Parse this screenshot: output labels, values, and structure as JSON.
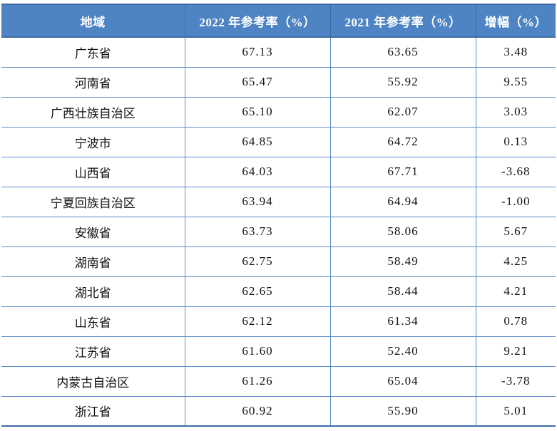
{
  "table": {
    "columns": [
      "地域",
      "2022 年参考率（%）",
      "2021 年参考率（%）",
      "增幅（%）"
    ],
    "rows": [
      {
        "region": "广东省",
        "rate_2022": "67.13",
        "rate_2021": "63.65",
        "change": "3.48"
      },
      {
        "region": "河南省",
        "rate_2022": "65.47",
        "rate_2021": "55.92",
        "change": "9.55"
      },
      {
        "region": "广西壮族自治区",
        "rate_2022": "65.10",
        "rate_2021": "62.07",
        "change": "3.03"
      },
      {
        "region": "宁波市",
        "rate_2022": "64.85",
        "rate_2021": "64.72",
        "change": "0.13"
      },
      {
        "region": "山西省",
        "rate_2022": "64.03",
        "rate_2021": "67.71",
        "change": "-3.68"
      },
      {
        "region": "宁夏回族自治区",
        "rate_2022": "63.94",
        "rate_2021": "64.94",
        "change": "-1.00"
      },
      {
        "region": "安徽省",
        "rate_2022": "63.73",
        "rate_2021": "58.06",
        "change": "5.67"
      },
      {
        "region": "湖南省",
        "rate_2022": "62.75",
        "rate_2021": "58.49",
        "change": "4.25"
      },
      {
        "region": "湖北省",
        "rate_2022": "62.65",
        "rate_2021": "58.44",
        "change": "4.21"
      },
      {
        "region": "山东省",
        "rate_2022": "62.12",
        "rate_2021": "61.34",
        "change": "0.78"
      },
      {
        "region": "江苏省",
        "rate_2022": "61.60",
        "rate_2021": "52.40",
        "change": "9.21"
      },
      {
        "region": "内蒙古自治区",
        "rate_2022": "61.26",
        "rate_2021": "65.04",
        "change": "-3.78"
      },
      {
        "region": "浙江省",
        "rate_2022": "60.92",
        "rate_2021": "55.90",
        "change": "5.01"
      }
    ]
  },
  "colors": {
    "header_bg": "#4E84C4",
    "header_text": "#FFFFFF",
    "outer_border": "#3D6CA5",
    "grid_line": "#5B8CC8",
    "body_text": "#111111"
  }
}
